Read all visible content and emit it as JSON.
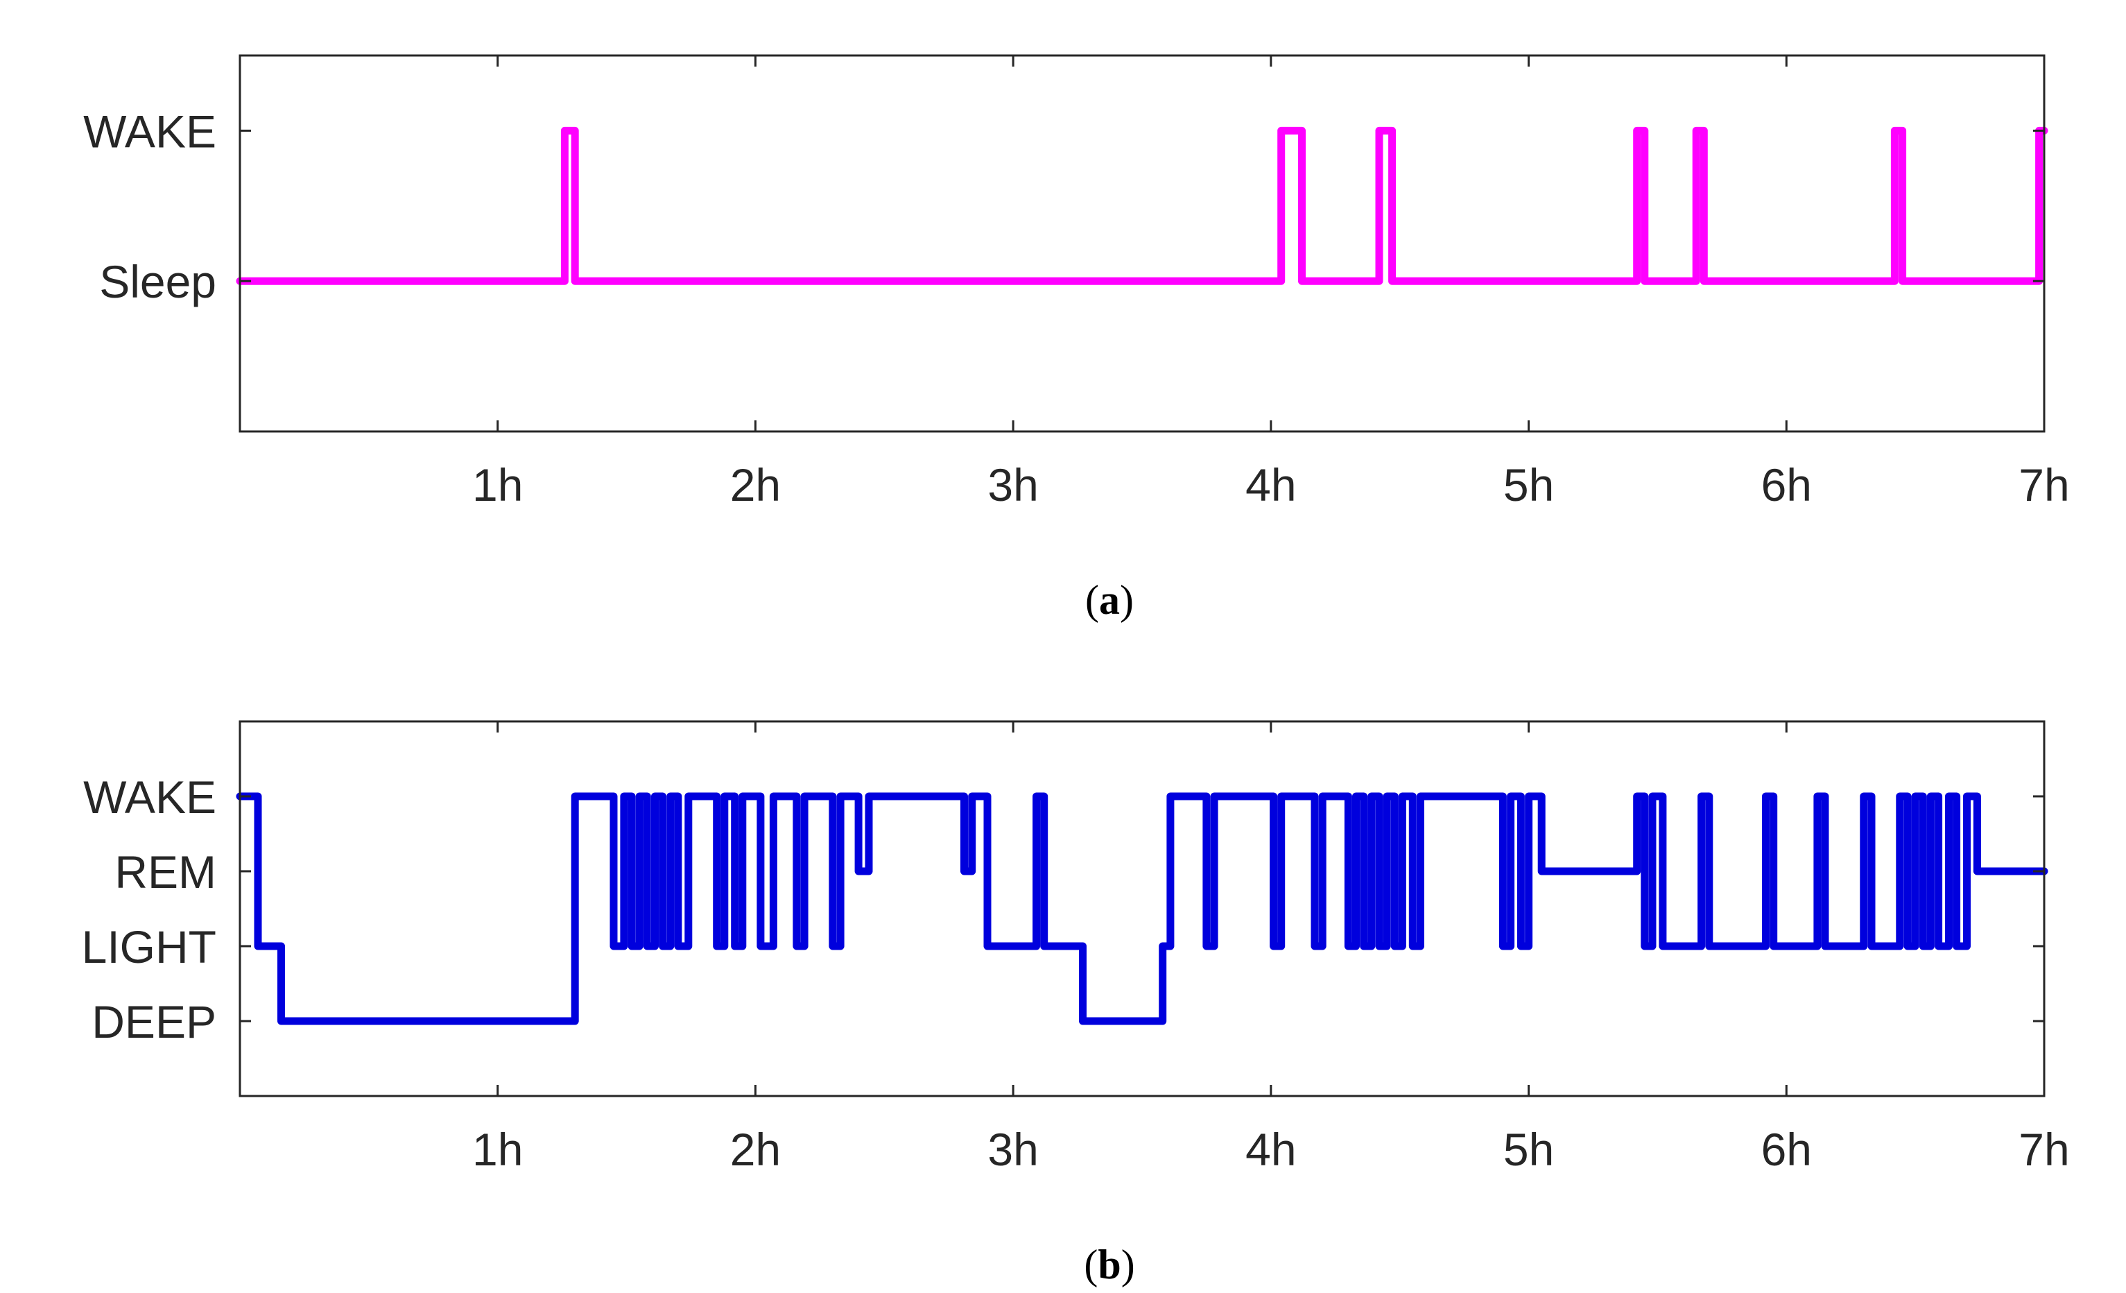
{
  "chart_data": [
    {
      "type": "line",
      "panel_label": "a",
      "xlabel": "",
      "ylabel": "",
      "x_unit": "h",
      "xlim": [
        0,
        7
      ],
      "x_ticks": [
        1,
        2,
        3,
        4,
        5,
        6,
        7
      ],
      "x_tick_labels": [
        "1h",
        "2h",
        "3h",
        "4h",
        "5h",
        "6h",
        "7h"
      ],
      "y_levels": [
        {
          "label": "WAKE",
          "value": 2
        },
        {
          "label": "Sleep",
          "value": 1
        }
      ],
      "ylim": [
        0,
        2.5
      ],
      "grid": false,
      "series": [
        {
          "color": "#ff00ff",
          "step_x": [
            0,
            1.26,
            1.3,
            4.04,
            4.12,
            4.42,
            4.47,
            5.42,
            5.45,
            5.65,
            5.68,
            6.42,
            6.45,
            6.98,
            7.0
          ],
          "step_y": [
            1,
            2,
            1,
            2,
            1,
            2,
            1,
            2,
            1,
            2,
            1,
            2,
            1,
            2,
            2
          ]
        }
      ]
    },
    {
      "type": "line",
      "panel_label": "b",
      "xlabel": "",
      "ylabel": "",
      "x_unit": "h",
      "xlim": [
        0,
        7
      ],
      "x_ticks": [
        1,
        2,
        3,
        4,
        5,
        6,
        7
      ],
      "x_tick_labels": [
        "1h",
        "2h",
        "3h",
        "4h",
        "5h",
        "6h",
        "7h"
      ],
      "y_levels": [
        {
          "label": "WAKE",
          "value": 4
        },
        {
          "label": "REM",
          "value": 3
        },
        {
          "label": "LIGHT",
          "value": 2
        },
        {
          "label": "DEEP",
          "value": 1
        }
      ],
      "ylim": [
        0.0,
        5.0
      ],
      "grid": false,
      "series": [
        {
          "color": "#0000dd",
          "step_x": [
            0,
            0.07,
            0.16,
            1.3,
            1.45,
            1.49,
            1.52,
            1.55,
            1.58,
            1.61,
            1.64,
            1.67,
            1.7,
            1.74,
            1.85,
            1.88,
            1.92,
            1.95,
            2.02,
            2.07,
            2.16,
            2.19,
            2.3,
            2.33,
            2.4,
            2.44,
            2.81,
            2.84,
            2.9,
            3.09,
            3.12,
            3.27,
            3.58,
            3.61,
            3.75,
            3.78,
            4.01,
            4.04,
            4.06,
            4.17,
            4.2,
            4.3,
            4.33,
            4.36,
            4.39,
            4.42,
            4.45,
            4.48,
            4.51,
            4.55,
            4.58,
            4.9,
            4.93,
            4.97,
            5.0,
            5.05,
            5.42,
            5.45,
            5.48,
            5.52,
            5.67,
            5.7,
            5.92,
            5.95,
            6.12,
            6.15,
            6.3,
            6.33,
            6.44,
            6.47,
            6.5,
            6.53,
            6.56,
            6.59,
            6.63,
            6.66,
            6.7,
            6.74,
            7.0
          ],
          "step_y": [
            4,
            2,
            1,
            4,
            2,
            4,
            2,
            4,
            2,
            4,
            2,
            4,
            2,
            4,
            2,
            4,
            2,
            4,
            2,
            4,
            2,
            4,
            2,
            4,
            3,
            4,
            3,
            4,
            2,
            4,
            2,
            1,
            2,
            4,
            2,
            4,
            2,
            4,
            4,
            2,
            4,
            2,
            4,
            2,
            4,
            2,
            4,
            2,
            4,
            2,
            4,
            2,
            4,
            2,
            4,
            3,
            4,
            2,
            4,
            2,
            4,
            2,
            4,
            2,
            4,
            2,
            4,
            2,
            4,
            2,
            4,
            2,
            4,
            2,
            4,
            2,
            4,
            3,
            3
          ]
        }
      ]
    }
  ]
}
